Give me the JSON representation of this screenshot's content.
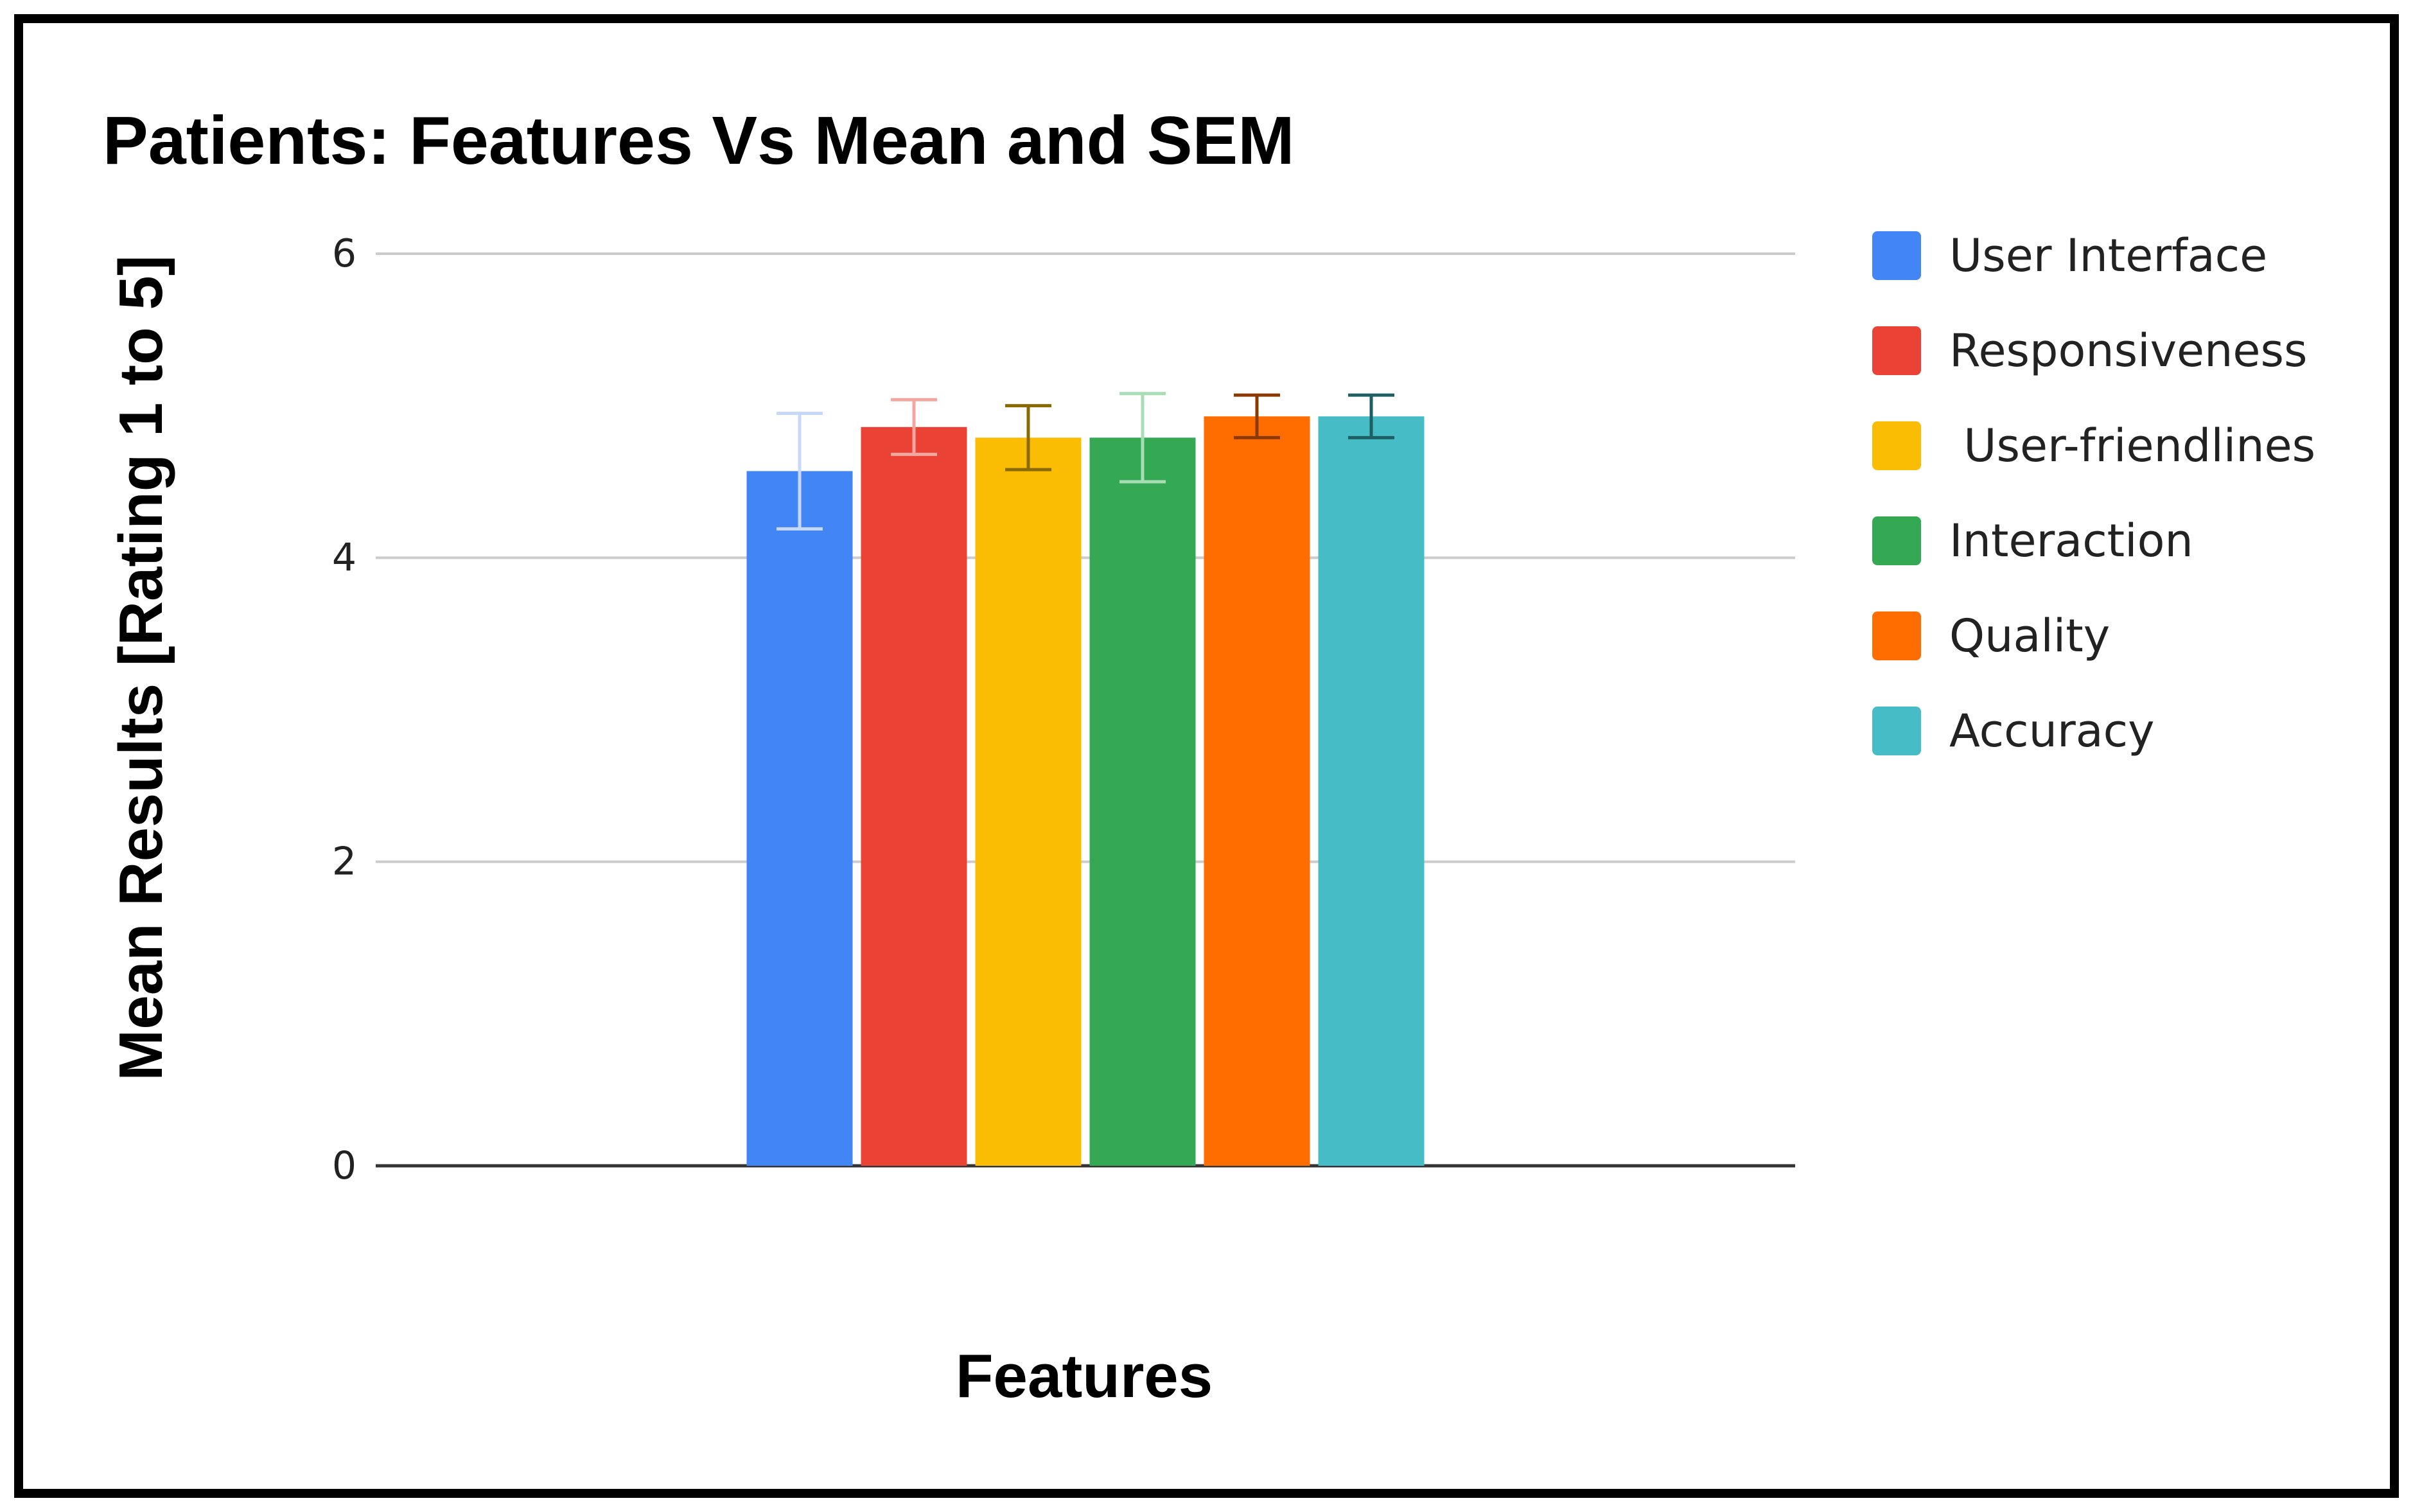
{
  "chart_data": {
    "type": "bar",
    "title": "Patients: Features Vs Mean and SEM",
    "xlabel": "Features",
    "ylabel": "Mean Results [Rating 1 to 5]",
    "ylim": [
      0,
      6
    ],
    "yticks": [
      0,
      2,
      4,
      6
    ],
    "grid": true,
    "legend_position": "right",
    "series": [
      {
        "name": "User Interface",
        "value": 4.57,
        "sem": 0.38,
        "color": "#4285F4",
        "error_color": "#C6D9FB"
      },
      {
        "name": "Responsiveness",
        "value": 4.86,
        "sem": 0.18,
        "color": "#EA4335",
        "error_color": "#F4A7A0"
      },
      {
        "name": " User-friendlines",
        "value": 4.79,
        "sem": 0.21,
        "color": "#FBBC04",
        "error_color": "#8A6A00"
      },
      {
        "name": "Interaction",
        "value": 4.79,
        "sem": 0.29,
        "color": "#34A853",
        "error_color": "#A8DDB5"
      },
      {
        "name": "Quality",
        "value": 4.93,
        "sem": 0.14,
        "color": "#FF6D01",
        "error_color": "#8A3A00"
      },
      {
        "name": "Accuracy",
        "value": 4.93,
        "sem": 0.14,
        "color": "#46BDC6",
        "error_color": "#1E5F64"
      }
    ]
  }
}
